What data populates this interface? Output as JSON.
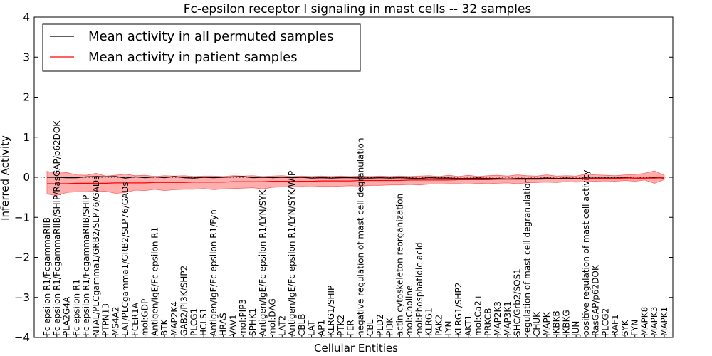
{
  "chart_data": {
    "type": "line",
    "title": "Fc-epsilon receptor I signaling in mast cells -- 32 samples",
    "xlabel": "Cellular Entities",
    "ylabel": "Inferred Activity",
    "ylim": [
      -4,
      4
    ],
    "yticks": [
      "4",
      "3",
      "2",
      "1",
      "0",
      "−1",
      "−2",
      "−3",
      "−4"
    ],
    "legend": {
      "position": "top-left",
      "entries": [
        {
          "label": "Mean activity in all permuted samples",
          "color": "#000000"
        },
        {
          "label": "Mean activity in patient samples",
          "color": "#ff0000"
        }
      ]
    },
    "categories": [
      "Fc epsilon R1/FcgammaRIIB",
      "Fc epsilon R1/FcgammaRIIB/SHIP/RasGAP/p62DOK",
      "PLA2G4A",
      "Fc epsilon R1",
      "Fc epsilon R1/FcgammaRIIB/SHIP",
      "NTAL/PLCgamma1/GRB2/SLP76/GADs",
      "PTPN13",
      "MS4A2",
      "LAT/PLCgamma1/GRB2/SLP76/GADs",
      "FCER1A",
      "mol:GDP",
      "Antigen/IgE/Fc epsilon R1",
      "BTK",
      "MAP2K4",
      "GAB2/PI3K/SHP2",
      "PLCG1",
      "HCLS1",
      "Antigen/IgE/Fc epsilon R1/Fyn",
      "HRAS",
      "VAV1",
      "mol:PIP3",
      "SPHK1",
      "Antigen/IgE/Fc epsilon R1/LYN/SYK",
      "mol:DAG",
      "LAT2",
      "Antigen/IgE/Fc epsilon R1/LYN/SYK/WIP",
      "CBLB",
      "LAT",
      "AP1",
      "KLRG1/SHIP",
      "PTK2",
      "FER",
      "negative regulation of mast cell degranulation",
      "CBL",
      "PLD2",
      "PI3K",
      "actin cytoskeleton reorganization",
      "mol:Choline",
      "mol:Phosphatidic acid",
      "KLRG1",
      "PAK2",
      "LYN",
      "KLRG1/SHP2",
      "AKT1",
      "mol:Ca2+",
      "PRKCB",
      "MAP2K3",
      "MAP3K1",
      "SHC/Grb2/SOS1",
      "regulation of mast cell degranulation",
      "CHUK",
      "MAPK",
      "IKBKB",
      "IKBKG",
      "JUN",
      "positive regulation of mast cell activity",
      "RasGAP/p62DOK",
      "PLCG2",
      "RAF1",
      "SYK",
      "FYN",
      "MAPK8",
      "MAPK3",
      "MAPK1"
    ],
    "series": [
      {
        "name": "Mean activity in all permuted samples",
        "color": "#000000",
        "values": [
          0.0,
          0.0,
          -0.01,
          -0.01,
          0.01,
          0.02,
          0.01,
          0.02,
          -0.02,
          0.01,
          -0.01,
          0.01,
          -0.01,
          0.02,
          -0.01,
          -0.02,
          0.0,
          -0.01,
          0.0,
          0.01,
          0.02,
          -0.01,
          0.0,
          -0.01,
          0.0,
          -0.01,
          0.0,
          -0.02,
          -0.01,
          -0.02,
          -0.01,
          -0.01,
          -0.02,
          -0.02,
          -0.01,
          -0.02,
          -0.01,
          -0.02,
          -0.03,
          -0.01,
          -0.02,
          -0.02,
          -0.03,
          -0.03,
          -0.02,
          -0.03,
          -0.03,
          -0.04,
          -0.03,
          -0.03,
          -0.03,
          -0.02,
          -0.03,
          -0.02,
          -0.03,
          -0.02,
          -0.02,
          -0.02,
          -0.02,
          -0.01,
          -0.02,
          -0.02,
          -0.01,
          -0.02
        ]
      },
      {
        "name": "Mean activity in patient samples",
        "color": "#ff0000",
        "values": [
          -0.16,
          -0.16,
          -0.16,
          -0.15,
          -0.15,
          -0.15,
          -0.15,
          -0.14,
          -0.14,
          -0.14,
          -0.14,
          -0.13,
          -0.13,
          -0.13,
          -0.13,
          -0.12,
          -0.12,
          -0.12,
          -0.12,
          -0.11,
          -0.11,
          -0.11,
          -0.11,
          -0.1,
          -0.1,
          -0.1,
          -0.1,
          -0.1,
          -0.09,
          -0.09,
          -0.09,
          -0.09,
          -0.08,
          -0.08,
          -0.08,
          -0.08,
          -0.08,
          -0.07,
          -0.07,
          -0.07,
          -0.07,
          -0.07,
          -0.06,
          -0.06,
          -0.06,
          -0.06,
          -0.05,
          -0.05,
          -0.05,
          -0.05,
          -0.05,
          -0.04,
          -0.04,
          -0.04,
          -0.04,
          -0.03,
          -0.03,
          -0.03,
          -0.03,
          -0.02,
          -0.02,
          -0.02,
          -0.02,
          -0.01
        ],
        "band_upper": [
          0.15,
          0.1,
          0.12,
          0.06,
          0.05,
          0.1,
          0.03,
          0.05,
          0.08,
          0.04,
          0.05,
          0.02,
          0.04,
          0.03,
          0.04,
          0.02,
          0.03,
          0.03,
          0.02,
          0.04,
          0.03,
          0.04,
          0.02,
          0.03,
          0.04,
          0.02,
          0.03,
          0.02,
          0.03,
          0.02,
          0.03,
          0.02,
          0.03,
          0.02,
          0.03,
          0.02,
          0.03,
          0.02,
          0.03,
          0.04,
          0.02,
          0.05,
          0.02,
          0.05,
          0.02,
          0.04,
          0.05,
          0.03,
          0.06,
          0.04,
          0.03,
          0.06,
          0.03,
          0.04,
          0.03,
          0.08,
          0.06,
          0.05,
          0.04,
          0.06,
          0.07,
          0.1,
          0.16,
          0.05
        ],
        "band_lower": [
          -0.42,
          -0.45,
          -0.38,
          -0.36,
          -0.36,
          -0.34,
          -0.35,
          -0.4,
          -0.38,
          -0.32,
          -0.33,
          -0.3,
          -0.33,
          -0.31,
          -0.3,
          -0.3,
          -0.28,
          -0.31,
          -0.29,
          -0.28,
          -0.27,
          -0.26,
          -0.29,
          -0.25,
          -0.24,
          -0.24,
          -0.23,
          -0.24,
          -0.22,
          -0.23,
          -0.22,
          -0.21,
          -0.22,
          -0.2,
          -0.2,
          -0.19,
          -0.19,
          -0.18,
          -0.19,
          -0.17,
          -0.17,
          -0.16,
          -0.16,
          -0.17,
          -0.15,
          -0.16,
          -0.15,
          -0.14,
          -0.16,
          -0.14,
          -0.13,
          -0.12,
          -0.13,
          -0.11,
          -0.12,
          -0.11,
          -0.1,
          -0.09,
          -0.1,
          -0.08,
          -0.1,
          -0.07,
          -0.15,
          -0.06
        ]
      }
    ]
  }
}
